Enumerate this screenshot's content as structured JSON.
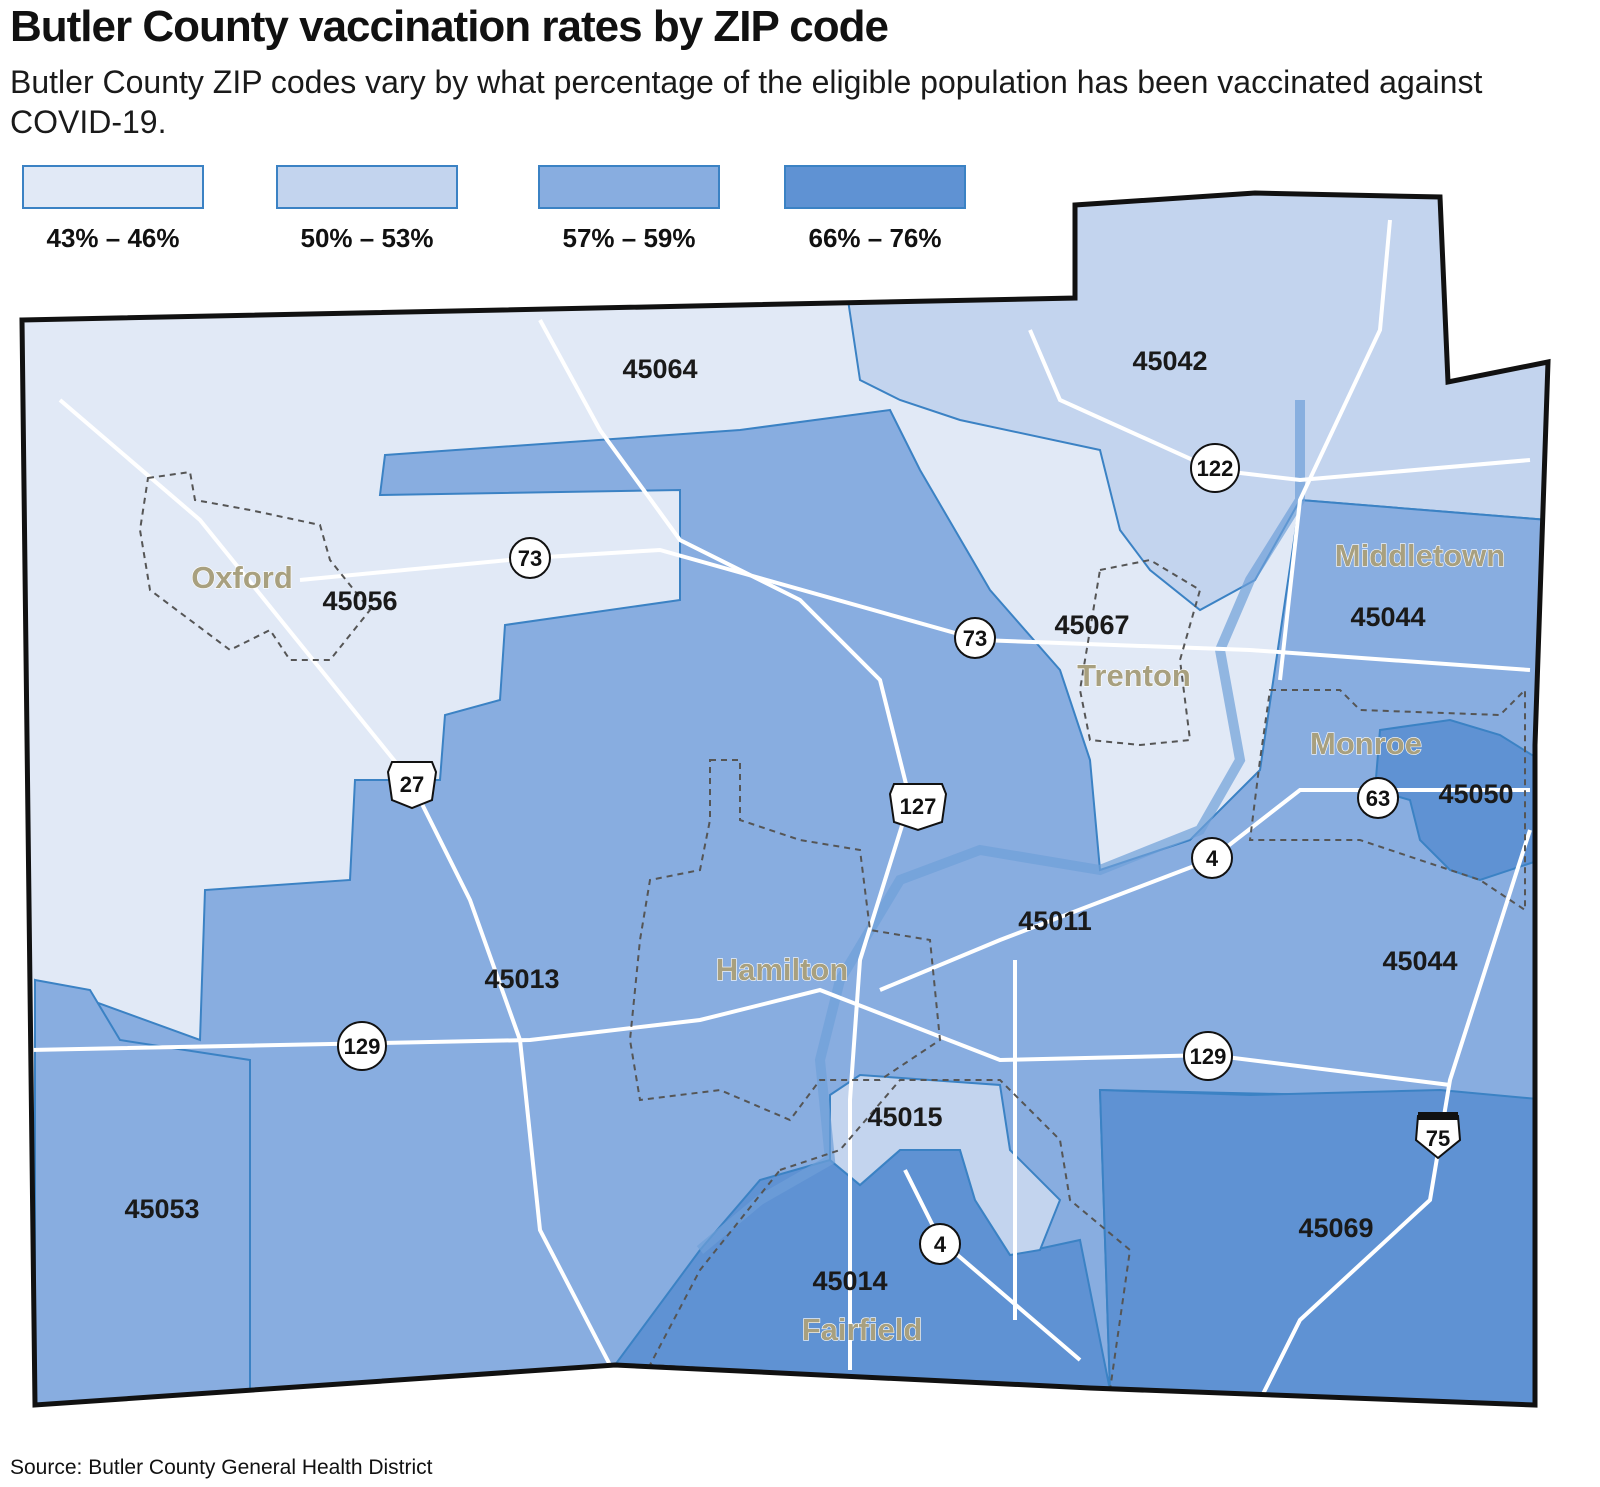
{
  "title": "Butler County vaccination rates by ZIP code",
  "subtitle": "Butler County ZIP codes vary by what percentage of the eligible population has been vaccinated against COVID-19.",
  "legend": [
    {
      "label": "43% – 46%",
      "color": "#e1e9f6"
    },
    {
      "label": "50% – 53%",
      "color": "#c3d4ee"
    },
    {
      "label": "57% – 59%",
      "color": "#88ade0"
    },
    {
      "label": "66% – 76%",
      "color": "#5f92d3"
    }
  ],
  "zip_codes": [
    {
      "zip": "45064",
      "range": "43% – 46%"
    },
    {
      "zip": "45042",
      "range": "50% – 53%"
    },
    {
      "zip": "45056",
      "range": "43% – 46%"
    },
    {
      "zip": "45067",
      "range": "43% – 46%"
    },
    {
      "zip": "45044",
      "range": "57% – 59%"
    },
    {
      "zip": "45050",
      "range": "66% – 76%"
    },
    {
      "zip": "45011",
      "range": "57% – 59%"
    },
    {
      "zip": "45013",
      "range": "57% – 59%"
    },
    {
      "zip": "45044",
      "range": "57% – 59%"
    },
    {
      "zip": "45015",
      "range": "50% – 53%"
    },
    {
      "zip": "45053",
      "range": "57% – 59%"
    },
    {
      "zip": "45014",
      "range": "66% – 76%"
    },
    {
      "zip": "45069",
      "range": "66% – 76%"
    }
  ],
  "cities": [
    "Oxford",
    "Middletown",
    "Trenton",
    "Monroe",
    "Hamilton",
    "Fairfield"
  ],
  "routes": [
    "73",
    "73",
    "122",
    "27",
    "127",
    "63",
    "4",
    "129",
    "129",
    "75",
    "4"
  ],
  "source": "Source: Butler County General Health District"
}
